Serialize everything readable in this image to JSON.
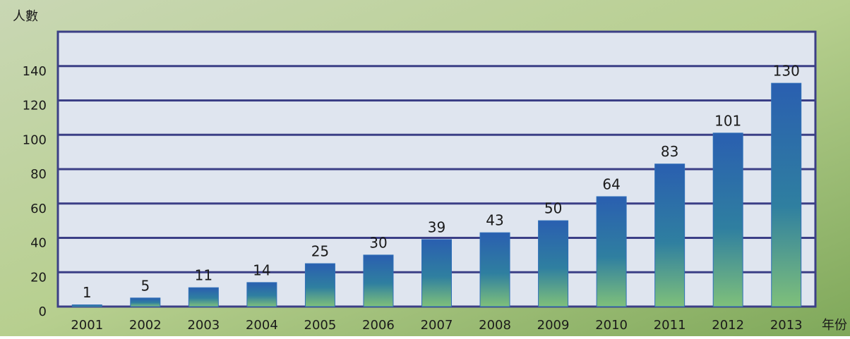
{
  "chart_data": {
    "type": "bar",
    "y_label": "人數",
    "x_label": "年份",
    "categories": [
      "2001",
      "2002",
      "2003",
      "2004",
      "2005",
      "2006",
      "2007",
      "2008",
      "2009",
      "2010",
      "2011",
      "2012",
      "2013"
    ],
    "values": [
      1,
      5,
      11,
      14,
      25,
      30,
      39,
      43,
      50,
      64,
      83,
      101,
      130
    ],
    "color": "#2f6fb8",
    "ylim": [
      0,
      160
    ],
    "yticks": [
      0,
      20,
      40,
      60,
      80,
      100,
      120,
      140
    ],
    "grid": true
  }
}
